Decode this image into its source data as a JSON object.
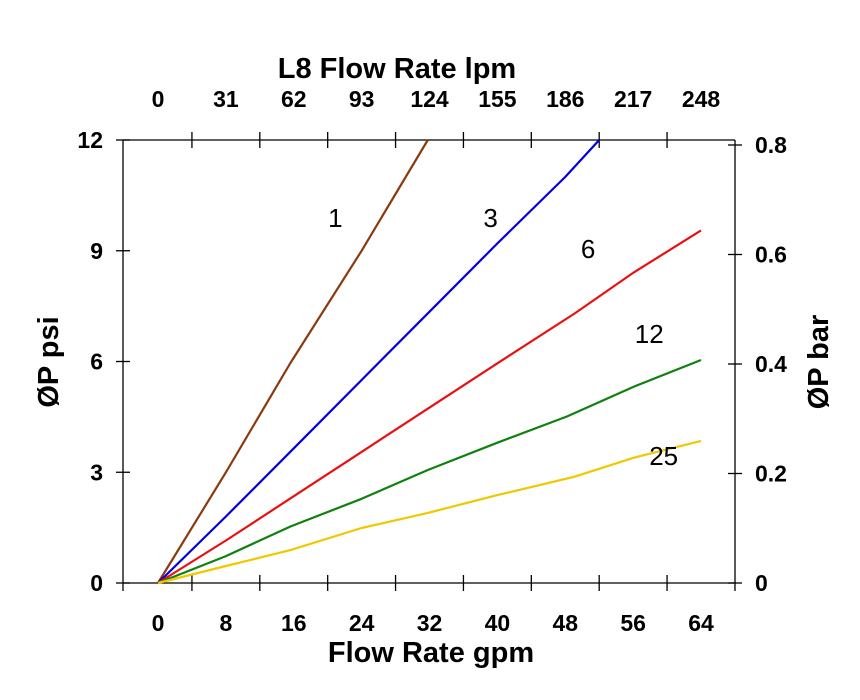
{
  "chart_data": {
    "type": "line",
    "title": "L8  Flow Rate lpm",
    "xlabel": "Flow Rate gpm",
    "ylabel": "ØP psi",
    "y2label": "ØP bar",
    "xlim": [
      0,
      64
    ],
    "ylim": [
      0,
      12
    ],
    "y2lim": [
      0,
      0.8
    ],
    "grid": false,
    "x_ticks": [
      "0",
      "8",
      "16",
      "24",
      "32",
      "40",
      "48",
      "56",
      "64"
    ],
    "x_top_ticks": [
      "0",
      "31",
      "62",
      "93",
      "124",
      "155",
      "186",
      "217",
      "248"
    ],
    "y_ticks": [
      "0",
      "3",
      "6",
      "9",
      "12"
    ],
    "y2_ticks": [
      "0",
      "0.2",
      "0.4",
      "0.6",
      "0.8"
    ],
    "series": [
      {
        "name": "1",
        "color": "#8B3A0F",
        "x": [
          0,
          8,
          15.6,
          24,
          31.8
        ],
        "y": [
          0,
          3.0,
          5.96,
          9.0,
          12
        ]
      },
      {
        "name": "3",
        "color": "#0000E0",
        "x": [
          0,
          8,
          16,
          24,
          32,
          40,
          48,
          52
        ],
        "y": [
          0,
          1.8,
          3.65,
          5.5,
          7.35,
          9.2,
          11.0,
          12
        ]
      },
      {
        "name": "6",
        "color": "#E81010",
        "x": [
          0,
          8,
          16,
          24,
          32,
          40,
          49.1,
          56,
          64
        ],
        "y": [
          0,
          1.15,
          2.35,
          3.55,
          4.75,
          5.95,
          7.3,
          8.4,
          9.55
        ]
      },
      {
        "name": "12",
        "color": "#108010",
        "x": [
          0,
          8,
          15.6,
          24,
          31.8,
          40,
          48.2,
          56.1,
          64
        ],
        "y": [
          0,
          0.73,
          1.53,
          2.28,
          3.06,
          3.8,
          4.51,
          5.32,
          6.04
        ]
      },
      {
        "name": "25",
        "color": "#F0C800",
        "x": [
          0,
          8,
          15.6,
          24,
          31.8,
          40,
          49.1,
          56,
          64
        ],
        "y": [
          0,
          0.46,
          0.89,
          1.49,
          1.9,
          2.38,
          2.88,
          3.39,
          3.85
        ]
      }
    ],
    "annotations": [
      {
        "text": "1",
        "x": 20.9,
        "y": 9.65
      },
      {
        "text": "3",
        "x": 39.2,
        "y": 9.65
      },
      {
        "text": "6",
        "x": 50.7,
        "y": 8.8
      },
      {
        "text": "12",
        "x": 57.9,
        "y": 6.5
      },
      {
        "text": "25",
        "x": 59.6,
        "y": 3.2
      }
    ]
  }
}
